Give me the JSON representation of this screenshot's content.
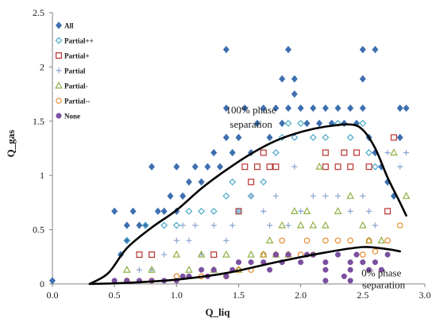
{
  "chart_data": {
    "type": "scatter",
    "title": "",
    "xlabel": "Q_liq",
    "ylabel": "Q_gas",
    "xlim": [
      0,
      3.0
    ],
    "ylim": [
      0,
      2.5
    ],
    "x_ticks": [
      0.0,
      0.5,
      1.0,
      1.5,
      2.0,
      2.5,
      3.0
    ],
    "x_tick_labels": [
      "0.0",
      "0.5",
      "1.0",
      "1.5",
      "2.0",
      "2.5",
      "3.0"
    ],
    "y_ticks": [
      0,
      0.5,
      1,
      1.5,
      2,
      2.5
    ],
    "y_tick_labels": [
      "0",
      "0.5",
      "1",
      "1.5",
      "2",
      "2.5"
    ],
    "grid": false,
    "legend_position": "top-left",
    "series": [
      {
        "name": "All",
        "marker": "diamond",
        "color": "#3d6fb0",
        "points": [
          [
            0.0,
            0.03
          ],
          [
            0.5,
            0.67
          ],
          [
            0.55,
            0.27
          ],
          [
            0.6,
            0.4
          ],
          [
            0.6,
            0.54
          ],
          [
            0.65,
            0.67
          ],
          [
            0.7,
            0.54
          ],
          [
            0.75,
            0.54
          ],
          [
            0.8,
            1.08
          ],
          [
            0.85,
            0.67
          ],
          [
            0.9,
            0.67
          ],
          [
            0.95,
            0.81
          ],
          [
            1.0,
            1.08
          ],
          [
            1.0,
            0.67
          ],
          [
            1.05,
            0.81
          ],
          [
            1.1,
            0.94
          ],
          [
            1.15,
            1.08
          ],
          [
            1.2,
            0.94
          ],
          [
            1.25,
            1.08
          ],
          [
            1.3,
            1.21
          ],
          [
            1.35,
            1.08
          ],
          [
            1.4,
            1.35
          ],
          [
            1.4,
            1.62
          ],
          [
            1.4,
            2.16
          ],
          [
            1.45,
            1.21
          ],
          [
            1.5,
            1.35
          ],
          [
            1.55,
            1.62
          ],
          [
            1.6,
            1.21
          ],
          [
            1.65,
            1.48
          ],
          [
            1.7,
            1.62
          ],
          [
            1.75,
            1.35
          ],
          [
            1.8,
            1.62
          ],
          [
            1.85,
            1.48
          ],
          [
            1.85,
            1.89
          ],
          [
            1.9,
            1.62
          ],
          [
            1.9,
            2.16
          ],
          [
            1.95,
            1.75
          ],
          [
            1.95,
            1.89
          ],
          [
            2.0,
            1.62
          ],
          [
            2.05,
            1.48
          ],
          [
            2.1,
            1.62
          ],
          [
            2.15,
            1.48
          ],
          [
            2.2,
            1.62
          ],
          [
            2.25,
            1.48
          ],
          [
            2.3,
            1.62
          ],
          [
            2.35,
            1.48
          ],
          [
            2.4,
            1.62
          ],
          [
            2.45,
            1.48
          ],
          [
            2.5,
            1.62
          ],
          [
            2.5,
            1.89
          ],
          [
            2.5,
            2.16
          ],
          [
            2.55,
            1.35
          ],
          [
            2.6,
            1.21
          ],
          [
            2.6,
            2.16
          ],
          [
            2.65,
            1.08
          ],
          [
            2.7,
            0.94
          ],
          [
            2.75,
            0.81
          ],
          [
            2.8,
            1.62
          ],
          [
            2.8,
            1.35
          ],
          [
            2.85,
            1.62
          ]
        ]
      },
      {
        "name": "Partial++",
        "marker": "diamond-open",
        "color": "#4aa8c8",
        "points": [
          [
            0.6,
            0.4
          ],
          [
            0.75,
            0.54
          ],
          [
            0.9,
            0.54
          ],
          [
            1.0,
            0.54
          ],
          [
            1.1,
            0.67
          ],
          [
            1.2,
            0.67
          ],
          [
            1.3,
            0.67
          ],
          [
            1.4,
            0.81
          ],
          [
            1.45,
            0.94
          ],
          [
            1.5,
            0.67
          ],
          [
            1.6,
            0.81
          ],
          [
            1.7,
            0.94
          ],
          [
            1.8,
            1.21
          ],
          [
            1.85,
            1.35
          ],
          [
            1.9,
            1.48
          ],
          [
            1.95,
            1.35
          ],
          [
            2.0,
            1.48
          ],
          [
            2.1,
            1.35
          ],
          [
            2.2,
            1.35
          ],
          [
            2.3,
            1.48
          ],
          [
            2.4,
            1.35
          ],
          [
            2.5,
            1.48
          ],
          [
            2.55,
            1.21
          ],
          [
            2.6,
            1.08
          ]
        ]
      },
      {
        "name": "Partial+",
        "marker": "square-open",
        "color": "#b8312f",
        "points": [
          [
            0.7,
            0.27
          ],
          [
            0.8,
            0.27
          ],
          [
            1.3,
            0.27
          ],
          [
            1.5,
            0.67
          ],
          [
            1.55,
            1.08
          ],
          [
            1.6,
            0.94
          ],
          [
            1.65,
            1.08
          ],
          [
            1.7,
            1.21
          ],
          [
            1.75,
            1.08
          ],
          [
            1.8,
            1.08
          ],
          [
            2.2,
            1.21
          ],
          [
            2.2,
            1.08
          ],
          [
            2.3,
            1.08
          ],
          [
            2.35,
            1.21
          ],
          [
            2.4,
            1.08
          ],
          [
            2.45,
            1.21
          ],
          [
            2.55,
            1.08
          ],
          [
            2.7,
            0.67
          ],
          [
            2.75,
            1.35
          ]
        ]
      },
      {
        "name": "Partial",
        "marker": "plus",
        "color": "#8aa6cf",
        "points": [
          [
            0.7,
            0.13
          ],
          [
            0.8,
            0.13
          ],
          [
            0.9,
            0.27
          ],
          [
            1.0,
            0.4
          ],
          [
            1.05,
            0.54
          ],
          [
            1.1,
            0.4
          ],
          [
            1.15,
            0.54
          ],
          [
            1.2,
            0.27
          ],
          [
            1.3,
            0.54
          ],
          [
            1.4,
            0.4
          ],
          [
            1.45,
            0.54
          ],
          [
            1.5,
            0.67
          ],
          [
            1.6,
            0.81
          ],
          [
            1.7,
            0.67
          ],
          [
            1.75,
            0.54
          ],
          [
            1.8,
            0.81
          ],
          [
            1.9,
            0.54
          ],
          [
            1.95,
            1.08
          ],
          [
            2.0,
            0.67
          ],
          [
            2.1,
            0.81
          ],
          [
            2.2,
            0.81
          ],
          [
            2.3,
            0.81
          ],
          [
            2.4,
            0.67
          ],
          [
            2.5,
            0.81
          ],
          [
            2.55,
            0.67
          ],
          [
            2.6,
            0.54
          ],
          [
            2.7,
            1.21
          ],
          [
            2.8,
            1.08
          ],
          [
            2.85,
            1.21
          ]
        ]
      },
      {
        "name": "Partial-",
        "marker": "triangle-open",
        "color": "#8fb045",
        "points": [
          [
            0.6,
            0.13
          ],
          [
            0.8,
            0.13
          ],
          [
            1.0,
            0.27
          ],
          [
            1.1,
            0.13
          ],
          [
            1.2,
            0.27
          ],
          [
            1.3,
            0.13
          ],
          [
            1.4,
            0.27
          ],
          [
            1.5,
            0.13
          ],
          [
            1.6,
            0.27
          ],
          [
            1.7,
            0.27
          ],
          [
            1.75,
            0.4
          ],
          [
            1.8,
            0.27
          ],
          [
            1.85,
            0.54
          ],
          [
            1.9,
            0.27
          ],
          [
            1.95,
            0.67
          ],
          [
            2.0,
            0.54
          ],
          [
            2.05,
            0.67
          ],
          [
            2.1,
            0.54
          ],
          [
            2.15,
            1.08
          ],
          [
            2.2,
            0.54
          ],
          [
            2.3,
            0.67
          ],
          [
            2.4,
            0.81
          ],
          [
            2.5,
            0.54
          ],
          [
            2.55,
            0.4
          ],
          [
            2.65,
            0.4
          ],
          [
            2.75,
            1.21
          ],
          [
            2.85,
            0.81
          ]
        ]
      },
      {
        "name": "Partial--",
        "marker": "circle-open",
        "color": "#e58b2e",
        "points": [
          [
            0.6,
            0.03
          ],
          [
            0.8,
            0.03
          ],
          [
            1.0,
            0.07
          ],
          [
            1.2,
            0.07
          ],
          [
            1.4,
            0.07
          ],
          [
            1.5,
            0.13
          ],
          [
            1.6,
            0.13
          ],
          [
            1.7,
            0.27
          ],
          [
            1.8,
            0.27
          ],
          [
            1.85,
            0.4
          ],
          [
            1.9,
            0.27
          ],
          [
            2.0,
            0.27
          ],
          [
            2.05,
            0.4
          ],
          [
            2.1,
            0.27
          ],
          [
            2.2,
            0.4
          ],
          [
            2.3,
            0.4
          ],
          [
            2.4,
            0.4
          ],
          [
            2.5,
            0.27
          ],
          [
            2.55,
            0.4
          ],
          [
            2.6,
            0.3
          ],
          [
            2.7,
            0.4
          ],
          [
            2.8,
            0.54
          ]
        ]
      },
      {
        "name": "None",
        "marker": "circle",
        "color": "#7a4fa0",
        "points": [
          [
            0.5,
            0.03
          ],
          [
            0.6,
            0.03
          ],
          [
            0.7,
            0.03
          ],
          [
            0.8,
            0.03
          ],
          [
            0.9,
            0.03
          ],
          [
            1.0,
            0.03
          ],
          [
            1.05,
            0.07
          ],
          [
            1.1,
            0.07
          ],
          [
            1.2,
            0.13
          ],
          [
            1.25,
            0.07
          ],
          [
            1.3,
            0.13
          ],
          [
            1.4,
            0.07
          ],
          [
            1.45,
            0.13
          ],
          [
            1.5,
            0.2
          ],
          [
            1.6,
            0.2
          ],
          [
            1.7,
            0.2
          ],
          [
            1.75,
            0.13
          ],
          [
            1.8,
            0.27
          ],
          [
            1.85,
            0.2
          ],
          [
            1.9,
            0.27
          ],
          [
            2.0,
            0.2
          ],
          [
            2.05,
            0.27
          ],
          [
            2.1,
            0.27
          ],
          [
            2.2,
            0.03
          ],
          [
            2.2,
            0.13
          ],
          [
            2.2,
            0.2
          ],
          [
            2.3,
            0.27
          ],
          [
            2.35,
            0.07
          ],
          [
            2.4,
            0.03
          ],
          [
            2.4,
            0.13
          ],
          [
            2.4,
            0.2
          ],
          [
            2.45,
            0.27
          ],
          [
            2.5,
            0.2
          ],
          [
            2.55,
            0.13
          ],
          [
            2.6,
            0.2
          ],
          [
            2.65,
            0.13
          ],
          [
            2.7,
            0.27
          ]
        ]
      }
    ],
    "curves": [
      {
        "name": "100% phase separation",
        "color": "#000000",
        "points": [
          [
            0.3,
            0.0
          ],
          [
            0.45,
            0.1
          ],
          [
            0.6,
            0.33
          ],
          [
            0.8,
            0.52
          ],
          [
            1.0,
            0.68
          ],
          [
            1.2,
            0.88
          ],
          [
            1.4,
            1.05
          ],
          [
            1.6,
            1.2
          ],
          [
            1.8,
            1.32
          ],
          [
            2.0,
            1.4
          ],
          [
            2.2,
            1.45
          ],
          [
            2.4,
            1.47
          ],
          [
            2.5,
            1.42
          ],
          [
            2.6,
            1.25
          ],
          [
            2.7,
            0.98
          ],
          [
            2.8,
            0.75
          ],
          [
            2.85,
            0.63
          ]
        ]
      },
      {
        "name": "0% phase separation",
        "color": "#000000",
        "points": [
          [
            0.3,
            0.0
          ],
          [
            0.6,
            0.01
          ],
          [
            1.0,
            0.04
          ],
          [
            1.4,
            0.1
          ],
          [
            1.8,
            0.2
          ],
          [
            2.2,
            0.29
          ],
          [
            2.5,
            0.34
          ],
          [
            2.7,
            0.32
          ],
          [
            2.8,
            0.3
          ]
        ]
      }
    ],
    "annotations": [
      {
        "text": "100% phase",
        "x": 1.6,
        "y": 1.57
      },
      {
        "text": "separation",
        "x": 1.6,
        "y": 1.44
      },
      {
        "text": "0% phase",
        "x": 2.65,
        "y": 0.07
      },
      {
        "text": "separation",
        "x": 2.67,
        "y": -0.04
      }
    ]
  }
}
